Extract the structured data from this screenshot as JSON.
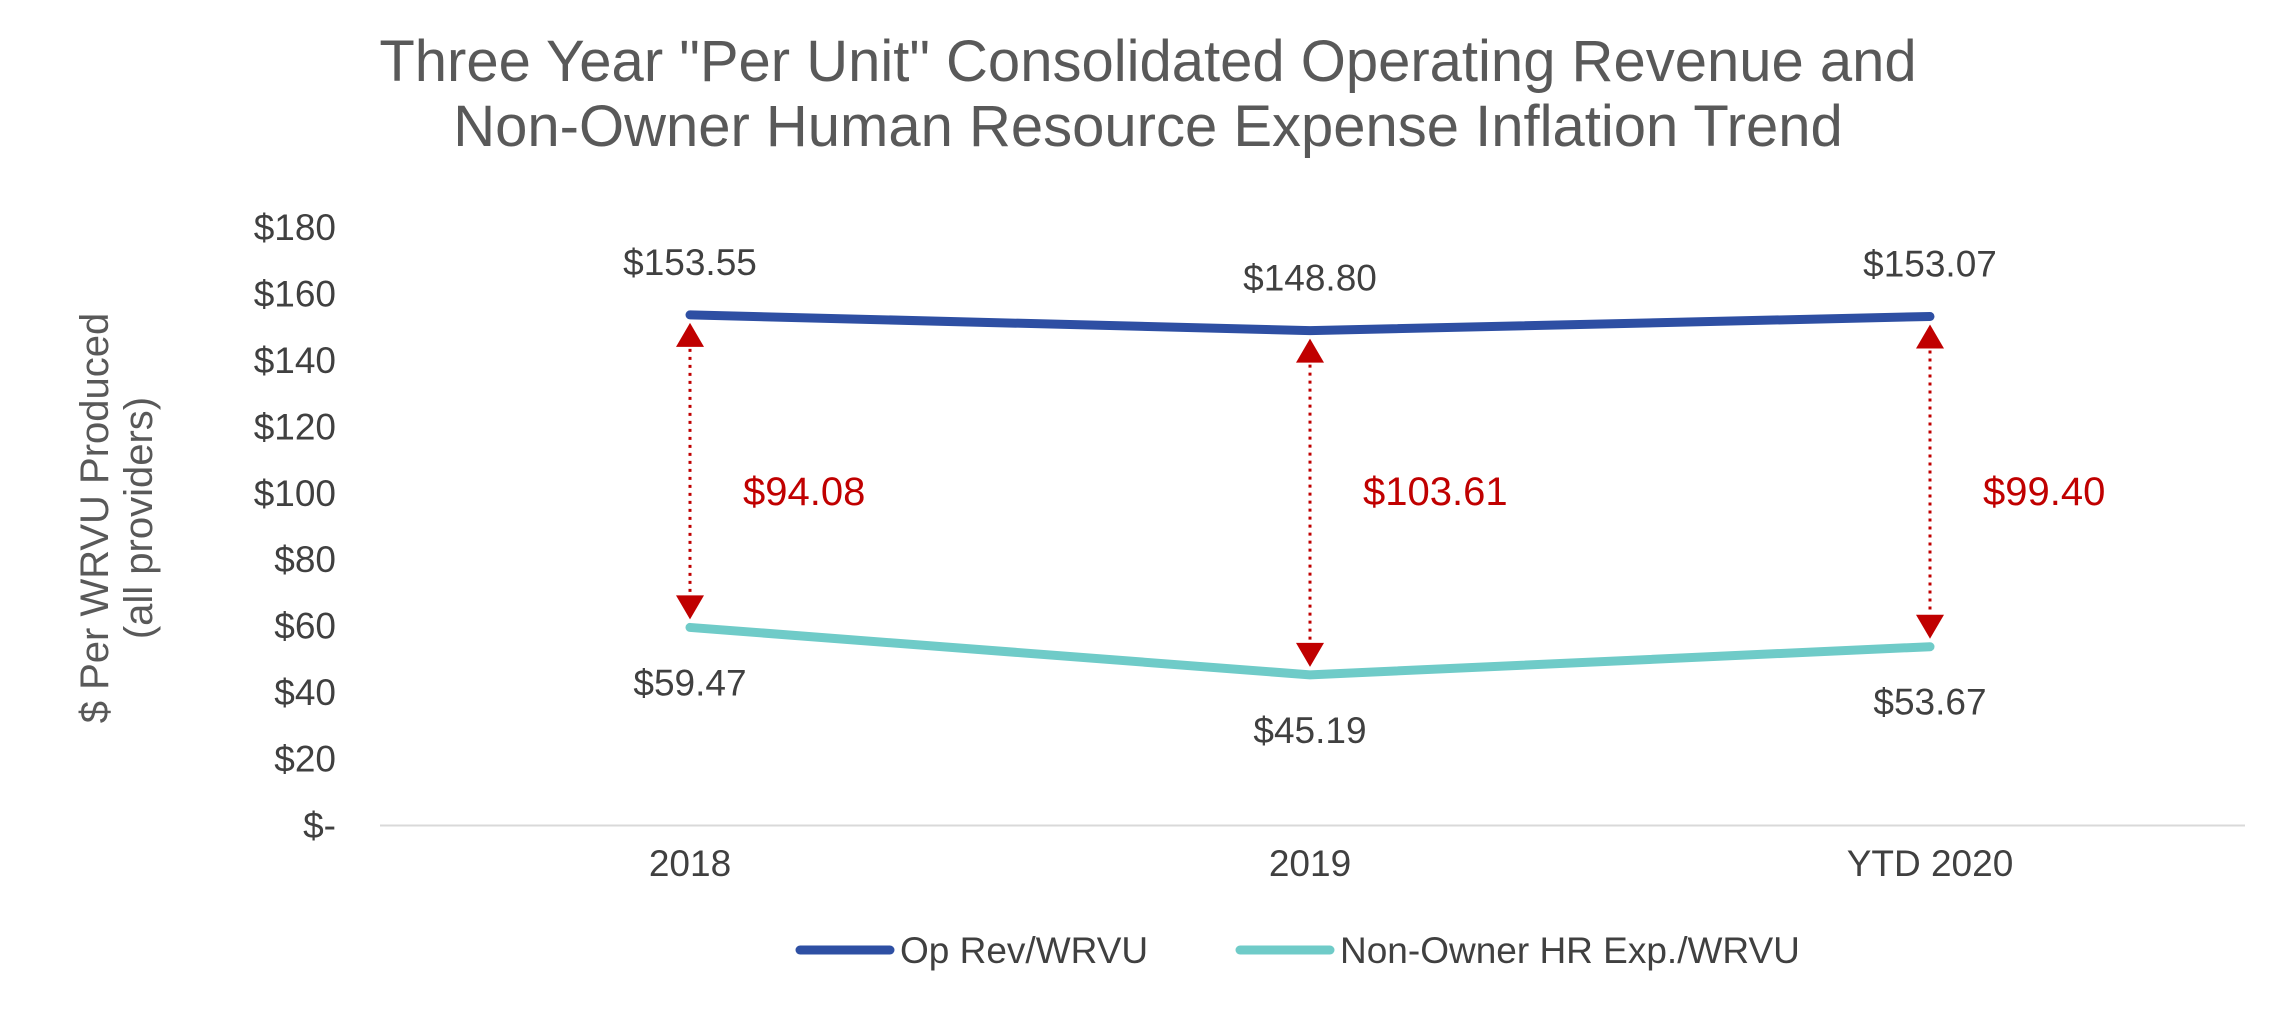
{
  "chart_data": {
    "type": "line",
    "title_lines": [
      "Three Year \"Per Unit\" Consolidated Operating Revenue and",
      "Non-Owner Human Resource Expense Inflation Trend"
    ],
    "ylabel_lines": [
      "$ Per WRVU Produced",
      "(all providers)"
    ],
    "xlabel": "",
    "categories": [
      "2018",
      "2019",
      "YTD 2020"
    ],
    "ylim": [
      0,
      180
    ],
    "yticks": [
      0,
      20,
      40,
      60,
      80,
      100,
      120,
      140,
      160,
      180
    ],
    "ytick_labels": [
      "$-",
      "$20",
      "$40",
      "$60",
      "$80",
      "$100",
      "$120",
      "$140",
      "$160",
      "$180"
    ],
    "grid": false,
    "legend_position": "bottom",
    "series": [
      {
        "name": "Op Rev/WRVU",
        "values": [
          153.55,
          148.8,
          153.07
        ],
        "labels": [
          "$153.55",
          "$148.80",
          "$153.07"
        ],
        "color": "#2E4FA3"
      },
      {
        "name": "Non-Owner HR Exp./WRVU",
        "values": [
          59.47,
          45.19,
          53.67
        ],
        "labels": [
          "$59.47",
          "$45.19",
          "$53.67"
        ],
        "color": "#6FCBC8"
      }
    ],
    "differences": {
      "values": [
        94.08,
        103.61,
        99.4
      ],
      "labels": [
        "$94.08",
        "$103.61",
        "$99.40"
      ],
      "color": "#C00000"
    },
    "text_color": "#404040",
    "title_color": "#595959",
    "axis_color": "#D9D9D9"
  }
}
